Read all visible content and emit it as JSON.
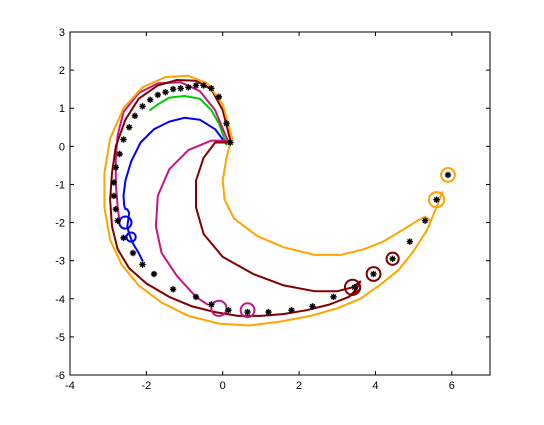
{
  "chart_data": {
    "type": "line",
    "title": "",
    "xlabel": "",
    "ylabel": "",
    "xlim": [
      -4,
      7
    ],
    "ylim": [
      -6,
      3
    ],
    "grid": false,
    "legend": "none",
    "x_ticks": [
      -4,
      -2,
      0,
      2,
      4,
      6
    ],
    "x_tick_labels": [
      "-4",
      "-2",
      "0",
      "2",
      "4",
      "6"
    ],
    "y_ticks": [
      -6,
      -5,
      -4,
      -3,
      -2,
      -1,
      0,
      1,
      2,
      3
    ],
    "y_tick_labels": [
      "-6",
      "-5",
      "-4",
      "-3",
      "-2",
      "-1",
      "0",
      "1",
      "2",
      "3"
    ],
    "series": [
      {
        "color": "#000000",
        "style": "markers",
        "marker": "asterisk",
        "x": [
          0.2,
          0.1,
          -0.1,
          -0.3,
          -0.5,
          -0.7,
          -0.9,
          -1.1,
          -1.3,
          -1.5,
          -1.7,
          -1.9,
          -2.1,
          -2.3,
          -2.45,
          -2.6,
          -2.7,
          -2.8,
          -2.85,
          -2.85,
          -2.8,
          -2.75,
          -2.6,
          -2.35,
          -2.1,
          -1.8,
          -1.3,
          -0.7,
          -0.3,
          0.15,
          0.65,
          1.2,
          1.8,
          2.35,
          2.9,
          3.45,
          3.95,
          4.45,
          4.9,
          5.3,
          5.6,
          5.9
        ],
        "y": [
          0.1,
          0.6,
          1.3,
          1.52,
          1.6,
          1.6,
          1.55,
          1.52,
          1.5,
          1.42,
          1.35,
          1.22,
          1.05,
          0.8,
          0.5,
          0.18,
          -0.2,
          -0.55,
          -0.95,
          -1.3,
          -1.65,
          -1.95,
          -2.4,
          -2.8,
          -3.1,
          -3.35,
          -3.75,
          -3.95,
          -4.15,
          -4.3,
          -4.35,
          -4.35,
          -4.3,
          -4.2,
          -3.95,
          -3.7,
          -3.35,
          -2.95,
          -2.5,
          -1.95,
          -1.4,
          -0.75
        ]
      },
      {
        "color": "#0000FF",
        "style": "line",
        "x": [
          0.1,
          -0.2,
          -0.6,
          -1.0,
          -1.4,
          -1.8,
          -2.15,
          -2.4,
          -2.55,
          -2.6,
          -2.58,
          -2.55,
          -2.5,
          -2.45,
          -2.5,
          -2.45,
          -2.35,
          -2.2,
          -2.1
        ],
        "y": [
          0.05,
          0.45,
          0.7,
          0.75,
          0.65,
          0.45,
          0.1,
          -0.4,
          -0.9,
          -1.3,
          -1.55,
          -1.65,
          -1.65,
          -1.75,
          -2.1,
          -2.3,
          -2.55,
          -2.8,
          -3.0
        ]
      },
      {
        "color": "#00CC00",
        "style": "line",
        "x": [
          0.1,
          -0.1,
          -0.3,
          -0.6,
          -1.0,
          -1.4,
          -1.7,
          -1.9
        ],
        "y": [
          0.05,
          0.6,
          0.95,
          1.25,
          1.32,
          1.28,
          1.1,
          0.95
        ]
      },
      {
        "color": "#C71585",
        "style": "line",
        "x": [
          0.15,
          -0.2,
          -0.6,
          -1.1,
          -1.7,
          -2.2,
          -2.6,
          -2.75,
          -2.8,
          -2.8,
          -2.75,
          -2.7
        ],
        "y": [
          0.1,
          0.95,
          1.45,
          1.68,
          1.65,
          1.4,
          0.9,
          0.3,
          -0.3,
          -1.0,
          -1.6,
          -2.0
        ]
      },
      {
        "color": "#C71585",
        "style": "line",
        "x": [
          0.15,
          -0.3,
          -0.9,
          -1.4,
          -1.7,
          -1.75,
          -1.6,
          -1.2,
          -0.7,
          -0.4
        ],
        "y": [
          0.15,
          0.15,
          -0.1,
          -0.6,
          -1.3,
          -2.1,
          -2.8,
          -3.4,
          -3.95,
          -4.15
        ]
      },
      {
        "color": "#800000",
        "style": "line",
        "x": [
          0.2,
          -0.2,
          -0.5,
          -0.7,
          -0.7,
          -0.5,
          0.0,
          0.8,
          1.6,
          2.4,
          3.0,
          3.4,
          3.6,
          3.5,
          3.3
        ],
        "y": [
          0.1,
          0.1,
          -0.3,
          -0.9,
          -1.6,
          -2.3,
          -2.9,
          -3.35,
          -3.65,
          -3.8,
          -3.8,
          -3.7,
          -3.55,
          -3.75,
          -3.95
        ]
      },
      {
        "color": "#800000",
        "style": "line",
        "x": [
          0.2,
          0.0,
          -0.3,
          -0.7,
          -1.2,
          -1.7,
          -2.2,
          -2.55,
          -2.8,
          -2.9,
          -2.95,
          -2.9,
          -2.75,
          -2.45,
          -2.0,
          -1.4,
          -0.8,
          -0.2,
          0.4,
          1.0,
          1.6,
          2.2,
          2.8,
          3.3,
          3.6
        ],
        "y": [
          0.15,
          0.95,
          1.5,
          1.72,
          1.74,
          1.6,
          1.25,
          0.7,
          0.0,
          -0.7,
          -1.4,
          -2.1,
          -2.7,
          -3.2,
          -3.6,
          -3.95,
          -4.2,
          -4.35,
          -4.45,
          -4.45,
          -4.4,
          -4.3,
          -4.15,
          -3.95,
          -3.75
        ]
      },
      {
        "color": "#FFA500",
        "style": "line",
        "x": [
          0.2,
          0.1,
          0.0,
          0.05,
          0.3,
          0.9,
          1.6,
          2.4,
          3.1,
          3.7,
          4.2,
          4.7,
          5.1,
          5.3,
          5.45,
          5.4
        ],
        "y": [
          0.1,
          -0.3,
          -0.9,
          -1.4,
          -1.9,
          -2.35,
          -2.65,
          -2.85,
          -2.85,
          -2.7,
          -2.5,
          -2.2,
          -1.95,
          -1.85,
          -1.95,
          -2.1
        ]
      },
      {
        "color": "#FFA500",
        "style": "line",
        "x": [
          0.25,
          0.0,
          -0.4,
          -0.9,
          -1.5,
          -2.1,
          -2.6,
          -2.95,
          -3.1,
          -3.1,
          -2.95,
          -2.65,
          -2.2,
          -1.6,
          -0.9,
          -0.1,
          0.7,
          1.5,
          2.3,
          3.0,
          3.6,
          4.1,
          4.6,
          5.0,
          5.35,
          5.6,
          5.75
        ],
        "y": [
          0.2,
          1.1,
          1.65,
          1.85,
          1.82,
          1.55,
          1.0,
          0.2,
          -0.7,
          -1.6,
          -2.45,
          -3.1,
          -3.65,
          -4.1,
          -4.45,
          -4.65,
          -4.7,
          -4.6,
          -4.45,
          -4.25,
          -4.0,
          -3.65,
          -3.25,
          -2.75,
          -2.2,
          -1.6,
          -1.2
        ]
      }
    ],
    "circles": [
      {
        "x": -2.55,
        "y": -2.0,
        "r": 0.16,
        "color": "#0000FF"
      },
      {
        "x": -2.4,
        "y": -2.38,
        "r": 0.12,
        "color": "#0000FF"
      },
      {
        "x": -0.1,
        "y": -4.25,
        "r": 0.2,
        "color": "#C71585"
      },
      {
        "x": 0.65,
        "y": -4.3,
        "r": 0.18,
        "color": "#C71585"
      },
      {
        "x": 3.4,
        "y": -3.7,
        "r": 0.2,
        "color": "#800000"
      },
      {
        "x": 3.95,
        "y": -3.35,
        "r": 0.18,
        "color": "#800000"
      },
      {
        "x": 4.45,
        "y": -2.95,
        "r": 0.16,
        "color": "#800000"
      },
      {
        "x": 5.6,
        "y": -1.4,
        "r": 0.2,
        "color": "#FFA500"
      },
      {
        "x": 5.9,
        "y": -0.75,
        "r": 0.18,
        "color": "#FFA500"
      }
    ]
  }
}
